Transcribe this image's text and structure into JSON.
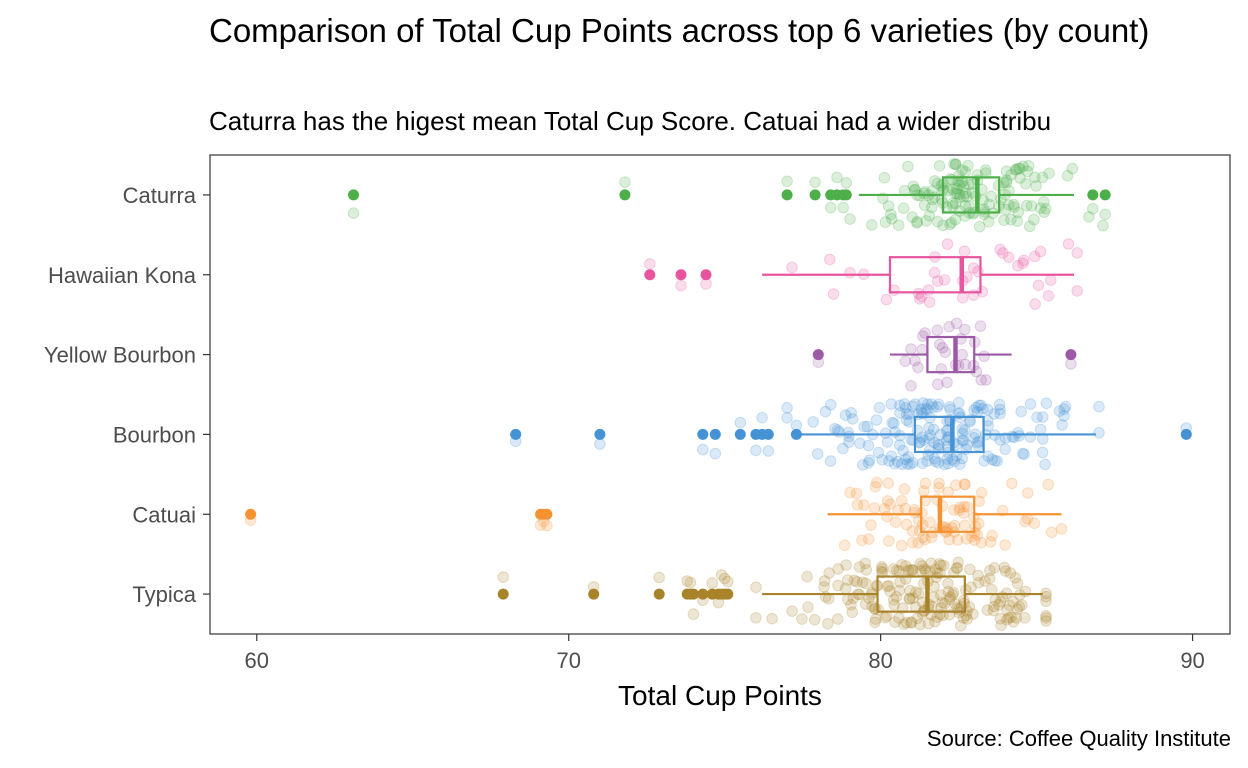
{
  "chart_data": {
    "type": "boxplot_jitter",
    "title": "Comparison of Total Cup Points across top 6 varieties (by count)",
    "subtitle": "Caturra has the higest mean Total Cup Score. Catuai had a wider distribu",
    "caption": "Source: Coffee Quality Institute",
    "xlabel": "Total Cup Points",
    "ylabel": "",
    "xlim": [
      58.5,
      91.2
    ],
    "xticks": [
      60,
      70,
      80,
      90
    ],
    "grid": false,
    "legend": "none",
    "categories": [
      "Caturra",
      "Hawaiian Kona",
      "Yellow Bourbon",
      "Bourbon",
      "Catuai",
      "Typica"
    ],
    "series": [
      {
        "category": "Caturra",
        "color": "#4daf4a",
        "box": {
          "min": 79.3,
          "q1": 82.0,
          "median": 83.1,
          "q3": 83.8,
          "max": 86.2
        },
        "outliers": [
          63.1,
          71.8,
          77.0,
          77.9,
          78.4,
          78.6,
          78.8,
          78.9,
          86.8,
          87.2
        ],
        "jitter": {
          "n": 140,
          "min": 77.8,
          "max": 87.2,
          "mean": 82.9,
          "sd": 1.6
        }
      },
      {
        "category": "Hawaiian Kona",
        "color": "#e7559f",
        "box": {
          "min": 76.2,
          "q1": 80.3,
          "median": 82.6,
          "q3": 83.2,
          "max": 86.2
        },
        "outliers": [
          72.6,
          73.6,
          74.4
        ],
        "jitter": {
          "n": 40,
          "min": 76.0,
          "max": 86.3,
          "mean": 82.2,
          "sd": 2.2
        }
      },
      {
        "category": "Yellow Bourbon",
        "color": "#9c59a6",
        "box": {
          "min": 80.3,
          "q1": 81.5,
          "median": 82.4,
          "q3": 83.0,
          "max": 84.2
        },
        "outliers": [
          78.0,
          86.1
        ],
        "jitter": {
          "n": 30,
          "min": 80.0,
          "max": 84.3,
          "mean": 82.2,
          "sd": 1.0
        }
      },
      {
        "category": "Bourbon",
        "color": "#4592d5",
        "box": {
          "min": 77.4,
          "q1": 81.1,
          "median": 82.3,
          "q3": 83.3,
          "max": 86.9
        },
        "outliers": [
          68.3,
          71.0,
          74.3,
          74.7,
          75.5,
          76.0,
          76.2,
          76.4,
          77.3,
          89.8
        ],
        "jitter": {
          "n": 180,
          "min": 77.0,
          "max": 87.0,
          "mean": 82.2,
          "sd": 1.8
        }
      },
      {
        "category": "Catuai",
        "color": "#f59333",
        "box": {
          "min": 78.3,
          "q1": 81.3,
          "median": 81.9,
          "q3": 83.0,
          "max": 85.8
        },
        "outliers": [
          59.8,
          69.1,
          69.2,
          69.3
        ],
        "jitter": {
          "n": 90,
          "min": 78.0,
          "max": 85.8,
          "mean": 82.0,
          "sd": 1.5
        }
      },
      {
        "category": "Typica",
        "color": "#a8832a",
        "box": {
          "min": 76.2,
          "q1": 79.9,
          "median": 81.5,
          "q3": 82.7,
          "max": 85.2
        },
        "outliers": [
          67.9,
          70.8,
          72.9,
          73.8,
          73.9,
          74.0,
          74.3,
          74.6,
          74.8,
          74.9,
          75.0,
          75.1
        ],
        "jitter": {
          "n": 190,
          "min": 76.0,
          "max": 85.3,
          "mean": 81.3,
          "sd": 2.0
        }
      }
    ]
  }
}
